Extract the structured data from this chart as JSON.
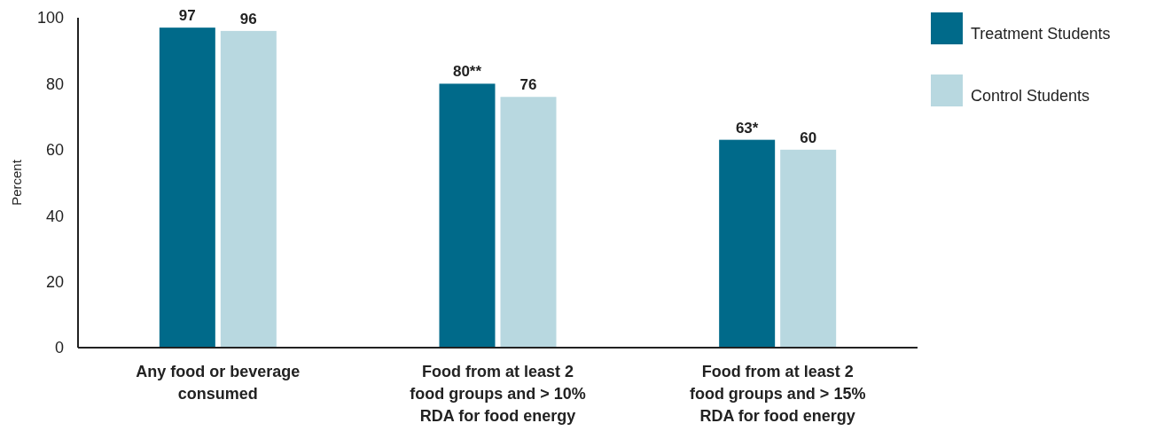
{
  "chart_data": {
    "type": "bar",
    "ylabel": "Percent",
    "categories": [
      "Any food or beverage consumed",
      "Food from at least 2 food groups and > 10% RDA for food energy",
      "Food from at least 2 food groups and > 15% RDA for food energy"
    ],
    "series": [
      {
        "name": "Treatment Students",
        "color": "#006a8a",
        "values": [
          97,
          80,
          63
        ],
        "value_labels": [
          "97",
          "80**",
          "63*"
        ]
      },
      {
        "name": "Control Students",
        "color": "#b8d8e0",
        "values": [
          96,
          76,
          60
        ],
        "value_labels": [
          "96",
          "76",
          "60"
        ]
      }
    ],
    "ylim": [
      0,
      100
    ],
    "yticks": [
      0,
      20,
      40,
      60,
      80,
      100
    ],
    "grid": false,
    "legend": "top right"
  }
}
